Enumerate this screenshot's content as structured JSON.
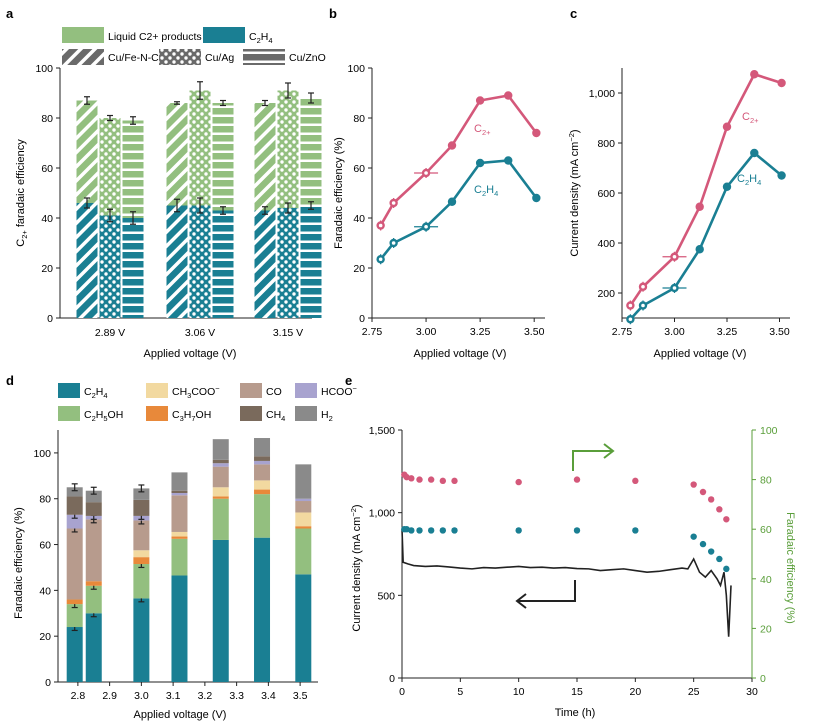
{
  "colors": {
    "c2h4": "#1a7f93",
    "liquid": "#93bf7f",
    "c2plus": "#d4587a",
    "black": "#222222",
    "ch3coo": "#f2d9a0",
    "co": "#b79b8d",
    "hcoo": "#a8a3cf",
    "c2h5oh": "#93bf7f",
    "c3h7oh": "#e8893a",
    "ch4": "#7a6a5c",
    "h2": "#8a8a8a",
    "fe_axis": "#5a9e3a",
    "axis": "#222222"
  },
  "chart_data": [
    {
      "panel": "a",
      "type": "bar",
      "ylabel": "C2+ faradaic efficiency",
      "xlabel": "Applied voltage (V)",
      "ylim": [
        0,
        100
      ],
      "yticks": [
        "0",
        "20",
        "40",
        "60",
        "80",
        "100"
      ],
      "categories": [
        "2.89 V",
        "3.06 V",
        "3.15 V"
      ],
      "catalysts": [
        "Cu/Fe-N-C",
        "Cu/Ag",
        "Cu/ZnO"
      ],
      "legend": [
        "Liquid C2+ products",
        "C2H4",
        "Cu/Fe-N-C",
        "Cu/Ag",
        "Cu/ZnO"
      ],
      "series": [
        {
          "name": "C2H4",
          "values": [
            [
              46,
              41,
              40
            ],
            [
              45,
              45,
              43
            ],
            [
              43,
              44,
              45
            ]
          ],
          "errors": [
            [
              2,
              2.5,
              2.5
            ],
            [
              2.5,
              3,
              1.5
            ],
            [
              1.5,
              2,
              1.5
            ]
          ]
        },
        {
          "name": "Total C2+",
          "values": [
            [
              87,
              80,
              79
            ],
            [
              86,
              91,
              86
            ],
            [
              86,
              91,
              88
            ]
          ],
          "errors": [
            [
              1.5,
              1,
              1.5
            ],
            [
              0.5,
              3.5,
              1
            ],
            [
              1,
              3,
              2
            ]
          ]
        }
      ]
    },
    {
      "panel": "b",
      "type": "line",
      "ylabel": "Faradaic efficiency (%)",
      "xlabel": "Applied voltage (V)",
      "xlim": [
        2.75,
        3.55
      ],
      "ylim": [
        0,
        100
      ],
      "xticks": [
        "2.75",
        "3.00",
        "3.25",
        "3.50"
      ],
      "yticks": [
        "0",
        "20",
        "40",
        "60",
        "80",
        "100"
      ],
      "series": [
        {
          "name": "C2+",
          "x": [
            2.79,
            2.85,
            3.0,
            3.12,
            3.25,
            3.38,
            3.51
          ],
          "y": [
            37,
            46,
            58,
            69,
            87,
            89,
            74
          ]
        },
        {
          "name": "C2H4",
          "x": [
            2.79,
            2.85,
            3.0,
            3.12,
            3.25,
            3.38,
            3.51
          ],
          "y": [
            23.5,
            30,
            36.5,
            46.5,
            62,
            63,
            48
          ]
        }
      ],
      "labels": {
        "c2plus": "C2+",
        "c2h4": "C2H4"
      }
    },
    {
      "panel": "c",
      "type": "line",
      "ylabel": "Current density (mA cm−2)",
      "xlabel": "Applied voltage (V)",
      "xlim": [
        2.75,
        3.55
      ],
      "ylim": [
        100,
        1100
      ],
      "xticks": [
        "2.75",
        "3.00",
        "3.25",
        "3.50"
      ],
      "yticks": [
        "200",
        "400",
        "600",
        "800",
        "1,000"
      ],
      "series": [
        {
          "name": "C2+",
          "x": [
            2.79,
            2.85,
            3.0,
            3.12,
            3.25,
            3.38,
            3.51
          ],
          "y": [
            150,
            225,
            345,
            545,
            865,
            1075,
            1040
          ]
        },
        {
          "name": "C2H4",
          "x": [
            2.79,
            2.85,
            3.0,
            3.12,
            3.25,
            3.38,
            3.51
          ],
          "y": [
            95,
            150,
            220,
            375,
            625,
            760,
            670
          ]
        }
      ],
      "labels": {
        "c2plus": "C2+",
        "c2h4": "C2H4"
      }
    },
    {
      "panel": "d",
      "type": "bar",
      "stacked": true,
      "ylabel": "Faradaic efficiency (%)",
      "xlabel": "Applied voltage (V)",
      "ylim": [
        0,
        110
      ],
      "yticks": [
        "0",
        "20",
        "40",
        "60",
        "80",
        "100"
      ],
      "xticks": [
        "2.8",
        "2.9",
        "3.0",
        "3.1",
        "3.2",
        "3.3",
        "3.4",
        "3.5"
      ],
      "x": [
        2.79,
        2.85,
        3.0,
        3.12,
        3.25,
        3.38,
        3.51
      ],
      "legend": [
        "C2H4",
        "CH3COO−",
        "CO",
        "HCOO−",
        "C2H5OH",
        "C3H7OH",
        "CH4",
        "H2"
      ],
      "series": [
        {
          "name": "C2H4",
          "values": [
            24,
            30,
            36.5,
            46.5,
            62,
            63,
            47
          ]
        },
        {
          "name": "C2H5OH",
          "values": [
            10,
            12,
            15,
            16,
            18,
            19,
            20
          ]
        },
        {
          "name": "C3H7OH",
          "values": [
            2,
            2,
            3,
            1,
            1,
            2,
            1
          ]
        },
        {
          "name": "CH3COO−",
          "values": [
            0,
            0,
            3,
            2,
            4,
            4,
            6
          ]
        },
        {
          "name": "CO",
          "values": [
            31,
            27,
            13,
            16,
            9,
            7,
            5
          ]
        },
        {
          "name": "HCOO−",
          "values": [
            6,
            1.5,
            2,
            1,
            1.5,
            1.5,
            1
          ]
        },
        {
          "name": "CH4",
          "values": [
            8,
            6,
            7,
            1,
            1.5,
            2,
            0
          ]
        },
        {
          "name": "H2",
          "values": [
            4,
            5,
            5,
            8,
            9,
            8,
            15
          ]
        }
      ]
    },
    {
      "panel": "e",
      "type": "scatter",
      "xlabel": "Time (h)",
      "ylabel_left": "Current density (mA cm−2)",
      "ylabel_right": "Faradaic efficiency (%)",
      "xlim": [
        0,
        30
      ],
      "ylim_left": [
        0,
        1500
      ],
      "ylim_right": [
        0,
        100
      ],
      "xticks": [
        "0",
        "5",
        "10",
        "15",
        "20",
        "25",
        "30"
      ],
      "yticks_left": [
        "0",
        "500",
        "1,000",
        "1,500"
      ],
      "yticks_right": [
        "0",
        "20",
        "40",
        "60",
        "80",
        "100"
      ],
      "series": [
        {
          "name": "C2+ FE",
          "x": [
            0.2,
            0.4,
            0.8,
            1.5,
            2.5,
            3.5,
            4.5,
            10,
            15,
            20,
            25,
            25.8,
            26.5,
            27.2,
            27.8
          ],
          "y": [
            82,
            81,
            80.5,
            80,
            80,
            79.5,
            79.5,
            79,
            80,
            79.5,
            78,
            75,
            72,
            68,
            64
          ]
        },
        {
          "name": "C2H4 FE",
          "x": [
            0.2,
            0.4,
            0.8,
            1.5,
            2.5,
            3.5,
            4.5,
            10,
            15,
            20,
            25,
            25.8,
            26.5,
            27.2,
            27.8
          ],
          "y": [
            60,
            60,
            59.5,
            59.5,
            59.5,
            59.5,
            59.5,
            59.5,
            59.5,
            59.5,
            57,
            54,
            51,
            48,
            44
          ]
        },
        {
          "name": "Current density",
          "x": [
            0,
            0.1,
            0.5,
            1,
            2,
            3,
            4,
            5,
            6,
            7,
            8,
            9,
            10,
            11,
            12,
            13,
            14,
            15,
            16,
            17,
            18,
            19,
            20,
            21,
            22,
            23,
            24,
            24.5,
            25,
            25.5,
            26,
            26.5,
            27,
            27.3,
            27.6,
            27.8,
            28,
            28.2
          ],
          "y": [
            900,
            700,
            690,
            680,
            675,
            678,
            672,
            665,
            660,
            668,
            665,
            670,
            675,
            668,
            670,
            665,
            668,
            662,
            660,
            650,
            655,
            660,
            650,
            640,
            645,
            655,
            665,
            660,
            720,
            640,
            610,
            650,
            600,
            560,
            640,
            500,
            250,
            560
          ]
        }
      ]
    }
  ],
  "panels": {
    "a": {
      "label": "a"
    },
    "b": {
      "label": "b"
    },
    "c": {
      "label": "c"
    },
    "d": {
      "label": "d"
    },
    "e": {
      "label": "e"
    }
  }
}
